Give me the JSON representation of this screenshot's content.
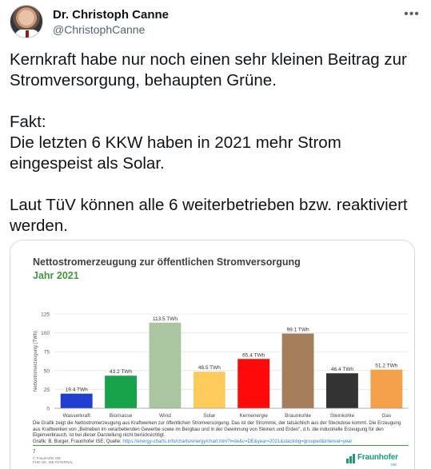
{
  "tweet": {
    "author": {
      "display_name": "Dr. Christoph Canne",
      "handle": "@ChristophCanne"
    },
    "more_label": "•••",
    "text": "Kernkraft habe nur noch einen sehr kleinen Beitrag zur Stromversorgung, behaupten Grüne.\n\nFakt:\nDie letzten 6 KKW haben in 2021 mehr Strom eingespeist als Solar.\n\nLaut TüV können alle 6 weiterbetrieben bzw. reaktiviert werden."
  },
  "media": {
    "title": "Nettostromerzeugung zur öffentlichen Stromversorgung",
    "subtitle": "Jahr 2021",
    "footnote": "Die Grafik zeigt die Nettostromerzeugung aus Kraftwerken zur öffentlichen Stromversorgung. Das ist der Strommix, der tatsächlich aus der Steckdose kommt. Die Erzeugung aus Kraftwerken von „Betrieben im verarbeitenden Gewerbe sowie im Bergbau und in der Gewinnung von Steinen und Erden\", d.h. die industrielle Erzeugung für den Eigenverbrauch, ist bei dieser Darstellung nicht berücksichtigt.",
    "source_prefix": "Grafik: B. Burger, Fraunhofer ISE; Quelle: ",
    "source_link": "https://energy-charts.info/charts/energy/chart.htm?l=de&c=DE&year=2021&stacking=grouped&interval=year",
    "page_number": "7",
    "copyright": "© Fraunhofer ISE\nFHG-SK: ISE-INTERNAL",
    "logo_text": "Fraunhofer",
    "logo_sub": "ISE"
  },
  "chart_data": {
    "type": "bar",
    "title": "Nettostromerzeugung zur öffentlichen Stromversorgung",
    "subtitle": "Jahr 2021",
    "ylabel": "Nettostromerzeugung (TWh)",
    "ylim": [
      0,
      125
    ],
    "yticks": [
      0,
      25,
      50,
      75,
      100,
      125
    ],
    "grid": true,
    "categories": [
      "Wasserkraft",
      "Biomasse",
      "Wind",
      "Solar",
      "Kernenergie",
      "Braunkohle",
      "Steinkohle",
      "Gas"
    ],
    "values": [
      19.4,
      43.2,
      113.5,
      48.5,
      65.4,
      99.1,
      46.4,
      51.2
    ],
    "value_labels": [
      "19.4 TWh",
      "43.2 TWh",
      "113.5 TWh",
      "48.5 TWh",
      "65.4 TWh",
      "99.1 TWh",
      "46.4 TWh",
      "51.2 TWh"
    ],
    "colors": [
      "#1f3fd0",
      "#16a34a",
      "#a9c6a0",
      "#fdcb5c",
      "#ff0a0a",
      "#a57e5c",
      "#333333",
      "#f5a04a"
    ]
  }
}
